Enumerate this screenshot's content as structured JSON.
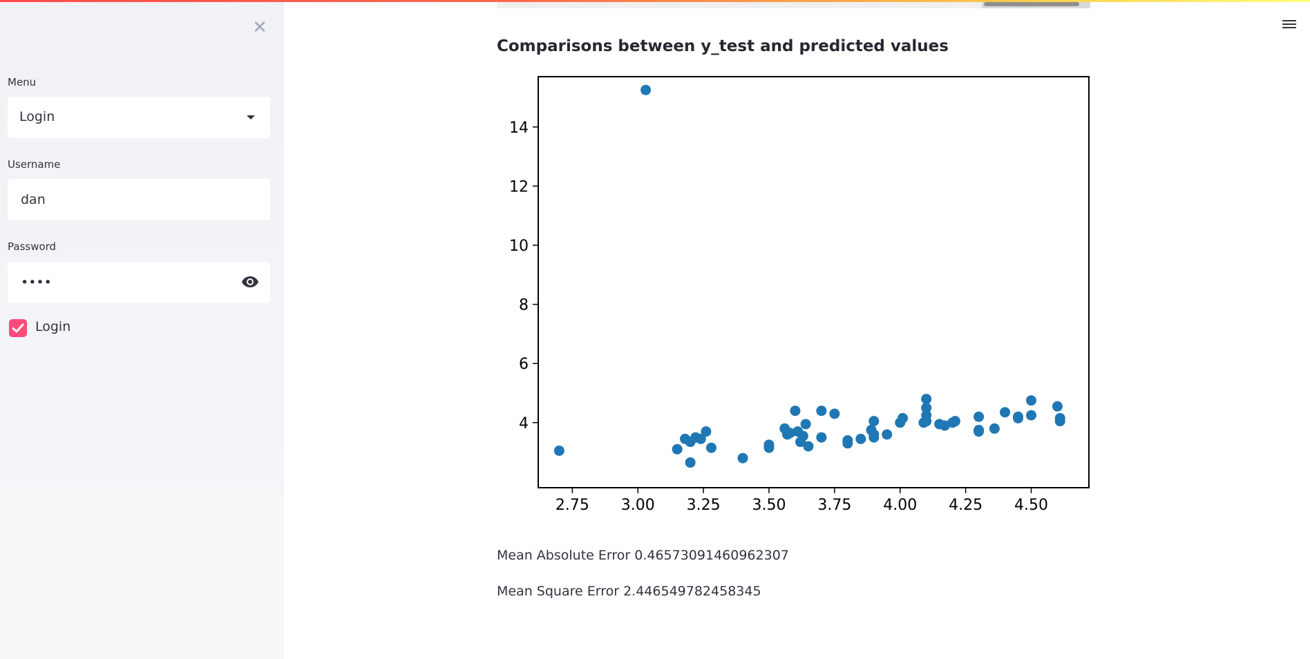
{
  "sidebar": {
    "menu_label": "Menu",
    "menu_value": "Login",
    "username_label": "Username",
    "username_value": "dan",
    "password_label": "Password",
    "password_value": "••••",
    "login_checkbox_label": "Login",
    "login_checked": true
  },
  "main": {
    "chart_title": "Comparisons between y_test and predicted values",
    "mae_text": "Mean Absolute Error 0.46573091460962307",
    "mse_text": "Mean Square Error 2.446549782458345"
  },
  "colors": {
    "accent": "#ff4b7a",
    "point": "#1f77b4"
  },
  "chart_data": {
    "type": "scatter",
    "title": "",
    "xlabel": "",
    "ylabel": "",
    "xlim": [
      2.62,
      4.72
    ],
    "ylim": [
      1.8,
      15.7
    ],
    "x_ticks": [
      2.75,
      3.0,
      3.25,
      3.5,
      3.75,
      4.0,
      4.25,
      4.5
    ],
    "x_tick_labels": [
      "2.75",
      "3.00",
      "3.25",
      "3.50",
      "3.75",
      "4.00",
      "4.25",
      "4.50"
    ],
    "y_ticks": [
      4,
      6,
      8,
      10,
      12,
      14
    ],
    "y_tick_labels": [
      "4",
      "6",
      "8",
      "10",
      "12",
      "14"
    ],
    "grid": false,
    "points": [
      [
        2.7,
        3.05
      ],
      [
        3.03,
        15.25
      ],
      [
        3.15,
        3.1
      ],
      [
        3.18,
        3.45
      ],
      [
        3.2,
        3.35
      ],
      [
        3.22,
        3.5
      ],
      [
        3.24,
        3.45
      ],
      [
        3.26,
        3.7
      ],
      [
        3.28,
        3.15
      ],
      [
        3.2,
        2.65
      ],
      [
        3.4,
        2.8
      ],
      [
        3.5,
        3.25
      ],
      [
        3.5,
        3.15
      ],
      [
        3.56,
        3.8
      ],
      [
        3.57,
        3.6
      ],
      [
        3.58,
        3.65
      ],
      [
        3.6,
        4.4
      ],
      [
        3.61,
        3.7
      ],
      [
        3.62,
        3.35
      ],
      [
        3.63,
        3.55
      ],
      [
        3.64,
        3.95
      ],
      [
        3.65,
        3.2
      ],
      [
        3.7,
        4.4
      ],
      [
        3.7,
        3.5
      ],
      [
        3.75,
        4.3
      ],
      [
        3.8,
        3.4
      ],
      [
        3.8,
        3.3
      ],
      [
        3.85,
        3.45
      ],
      [
        3.89,
        3.75
      ],
      [
        3.9,
        3.6
      ],
      [
        3.9,
        4.05
      ],
      [
        3.9,
        3.5
      ],
      [
        3.95,
        3.6
      ],
      [
        4.0,
        4.0
      ],
      [
        4.01,
        4.15
      ],
      [
        4.09,
        4.0
      ],
      [
        4.1,
        4.8
      ],
      [
        4.1,
        4.5
      ],
      [
        4.1,
        4.25
      ],
      [
        4.1,
        4.05
      ],
      [
        4.15,
        3.95
      ],
      [
        4.17,
        3.9
      ],
      [
        4.2,
        4.0
      ],
      [
        4.21,
        4.05
      ],
      [
        4.3,
        4.2
      ],
      [
        4.3,
        3.75
      ],
      [
        4.3,
        3.7
      ],
      [
        4.36,
        3.8
      ],
      [
        4.4,
        4.35
      ],
      [
        4.45,
        4.15
      ],
      [
        4.45,
        4.2
      ],
      [
        4.5,
        4.75
      ],
      [
        4.5,
        4.25
      ],
      [
        4.6,
        4.55
      ],
      [
        4.61,
        4.15
      ],
      [
        4.61,
        4.05
      ]
    ]
  }
}
